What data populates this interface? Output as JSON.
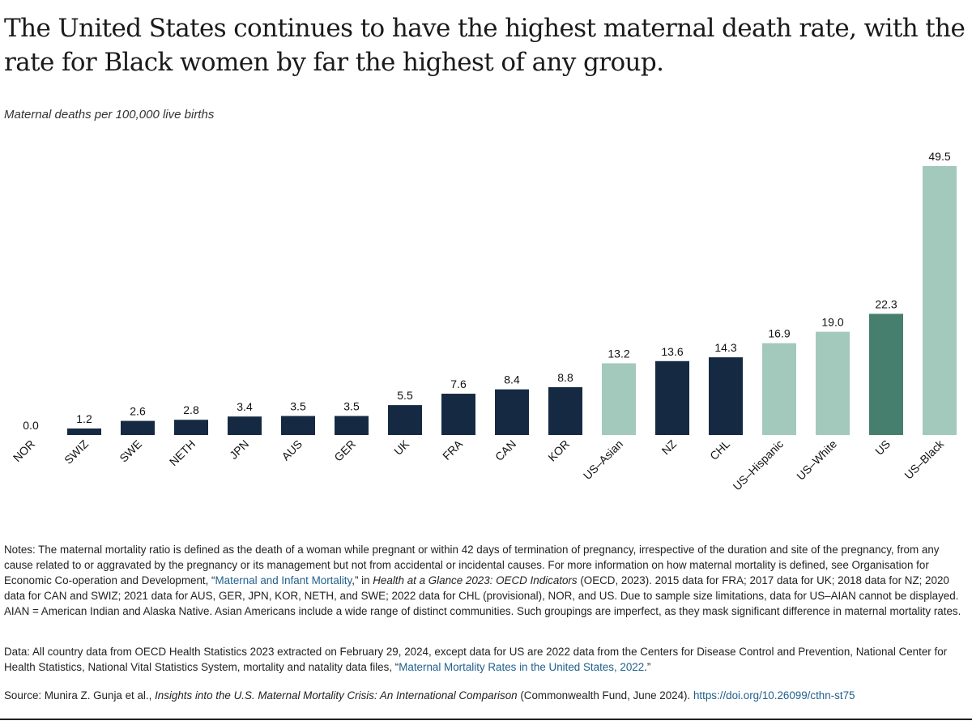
{
  "title": "The United States continues to have the highest maternal death rate, with the rate for Black women by far the highest of any group.",
  "colors": {
    "country": "#152a42",
    "us_subgroup": "#a3c9bc",
    "us": "#467f6e"
  },
  "chart_data": {
    "type": "bar",
    "title": "The United States continues to have the highest maternal death rate, with the rate for Black women by far the highest of any group.",
    "ylabel": "Maternal deaths per 100,000 live births",
    "xlabel": "",
    "ylim": [
      0,
      50
    ],
    "grid": false,
    "categories": [
      "NOR",
      "SWIZ",
      "SWE",
      "NETH",
      "JPN",
      "AUS",
      "GER",
      "UK",
      "FRA",
      "CAN",
      "KOR",
      "US–Asian",
      "NZ",
      "CHL",
      "US–Hispanic",
      "US–White",
      "US",
      "US–Black"
    ],
    "values": [
      0.0,
      1.2,
      2.6,
      2.8,
      3.4,
      3.5,
      3.5,
      5.5,
      7.6,
      8.4,
      8.8,
      13.2,
      13.6,
      14.3,
      16.9,
      19.0,
      22.3,
      49.5
    ],
    "value_labels": [
      "0.0",
      "1.2",
      "2.6",
      "2.8",
      "3.4",
      "3.5",
      "3.5",
      "5.5",
      "7.6",
      "8.4",
      "8.8",
      "13.2",
      "13.6",
      "14.3",
      "16.9",
      "19.0",
      "22.3",
      "49.5"
    ],
    "bar_groups": [
      "country",
      "country",
      "country",
      "country",
      "country",
      "country",
      "country",
      "country",
      "country",
      "country",
      "country",
      "us_subgroup",
      "country",
      "country",
      "us_subgroup",
      "us_subgroup",
      "us",
      "us_subgroup"
    ]
  },
  "notes": {
    "p1": "Notes: The maternal mortality ratio is defined as the death of a woman while pregnant or within 42 days of termination of pregnancy, irrespective of the duration and site of the pregnancy, from any cause related to or aggravated by the pregnancy or its management but not from accidental or incidental causes. For more information on how maternal mortality is defined, see Organisation for Economic Co-operation and Development, “",
    "link1": "Maternal and Infant Mortality",
    "p2": ",” in ",
    "italic1": "Health at a Glance 2023: OECD Indicators",
    "p3": " (OECD, 2023). 2015 data for FRA; 2017 data for UK; 2018 data for NZ; 2020 data for CAN and SWIZ; 2021 data for AUS, GER, JPN, KOR, NETH, and SWE; 2022 data for CHL (provisional), NOR, and US. Due to sample size limitations, data for US–AIAN cannot be displayed. AIAN = American Indian and Alaska Native. Asian Americans include a wide range of distinct communities. Such groupings are imperfect, as they mask significant difference in maternal mortality rates."
  },
  "data_note": {
    "p1": "Data: All country data from OECD Health Statistics 2023 extracted on February 29, 2024, except data for US are 2022 data from the Centers for Disease Control and Prevention, National Center for Health Statistics, National Vital Statistics System, mortality and natality data files, “",
    "link": "Maternal Mortality Rates in the United States, 2022",
    "p2": ".”"
  },
  "source": {
    "p1": "Source: Munira Z. Gunja et al., ",
    "italic": "Insights into the U.S. Maternal Mortality Crisis: An International Comparison",
    "p2": " (Commonwealth Fund, June 2024). ",
    "link": "https://doi.org/10.26099/cthn-st75"
  }
}
